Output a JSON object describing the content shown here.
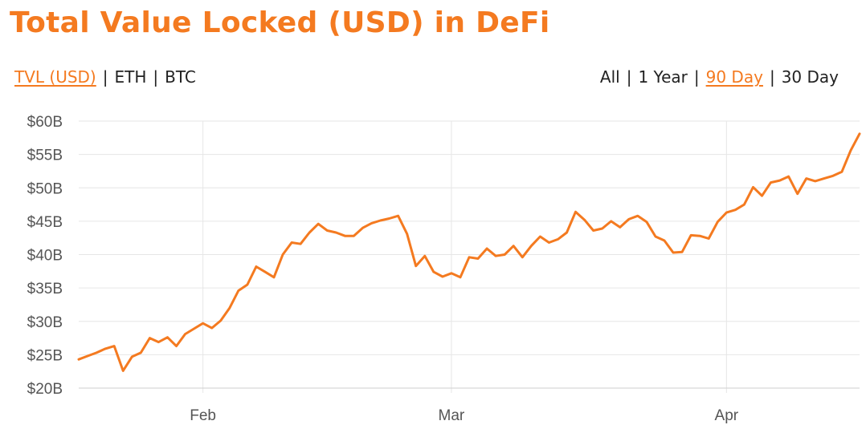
{
  "header": {
    "title": "Total Value Locked (USD) in DeFi"
  },
  "currency_options": [
    {
      "label": "TVL (USD)",
      "active": true
    },
    {
      "label": "ETH",
      "active": false
    },
    {
      "label": "BTC",
      "active": false
    }
  ],
  "range_options": [
    {
      "label": "All",
      "active": false
    },
    {
      "label": "1 Year",
      "active": false
    },
    {
      "label": "90 Day",
      "active": true
    },
    {
      "label": "30 Day",
      "active": false
    }
  ],
  "separator": "|",
  "colors": {
    "accent": "#f47a20",
    "line": "#f47a20",
    "grid": "#e6e6e6",
    "text": "#222222"
  },
  "chart_data": {
    "type": "line",
    "title": "",
    "xlabel": "",
    "ylabel": "",
    "x_ticks": [
      {
        "label": "Feb",
        "day": 14
      },
      {
        "label": "Mar",
        "day": 42
      },
      {
        "label": "Apr",
        "day": 73
      }
    ],
    "y_ticks": [
      "$20B",
      "$25B",
      "$30B",
      "$35B",
      "$40B",
      "$45B",
      "$50B",
      "$55B",
      "$60B"
    ],
    "y_tick_values": [
      20,
      25,
      30,
      35,
      40,
      45,
      50,
      55,
      60
    ],
    "ylim": [
      20,
      60
    ],
    "x_range_days": [
      0,
      88
    ],
    "grid": true,
    "series": [
      {
        "name": "",
        "unit": "B USD",
        "values": [
          [
            0,
            24.3
          ],
          [
            1,
            24.8
          ],
          [
            2,
            25.3
          ],
          [
            3,
            25.9
          ],
          [
            4,
            26.3
          ],
          [
            5,
            22.6
          ],
          [
            6,
            24.7
          ],
          [
            7,
            25.3
          ],
          [
            8,
            27.5
          ],
          [
            9,
            26.9
          ],
          [
            10,
            27.6
          ],
          [
            11,
            26.3
          ],
          [
            12,
            28.1
          ],
          [
            13,
            28.9
          ],
          [
            14,
            29.7
          ],
          [
            15,
            29.0
          ],
          [
            16,
            30.1
          ],
          [
            17,
            32.0
          ],
          [
            18,
            34.6
          ],
          [
            19,
            35.5
          ],
          [
            20,
            38.2
          ],
          [
            21,
            37.4
          ],
          [
            22,
            36.6
          ],
          [
            23,
            40.0
          ],
          [
            24,
            41.8
          ],
          [
            25,
            41.6
          ],
          [
            26,
            43.3
          ],
          [
            27,
            44.6
          ],
          [
            28,
            43.6
          ],
          [
            29,
            43.3
          ],
          [
            30,
            42.8
          ],
          [
            31,
            42.8
          ],
          [
            32,
            44.0
          ],
          [
            33,
            44.7
          ],
          [
            34,
            45.1
          ],
          [
            35,
            45.4
          ],
          [
            36,
            45.8
          ],
          [
            37,
            43.1
          ],
          [
            38,
            38.3
          ],
          [
            39,
            39.8
          ],
          [
            40,
            37.4
          ],
          [
            41,
            36.7
          ],
          [
            42,
            37.2
          ],
          [
            43,
            36.6
          ],
          [
            44,
            39.6
          ],
          [
            45,
            39.4
          ],
          [
            46,
            40.9
          ],
          [
            47,
            39.8
          ],
          [
            48,
            40.0
          ],
          [
            49,
            41.3
          ],
          [
            50,
            39.6
          ],
          [
            51,
            41.3
          ],
          [
            52,
            42.7
          ],
          [
            53,
            41.8
          ],
          [
            54,
            42.3
          ],
          [
            55,
            43.3
          ],
          [
            56,
            46.4
          ],
          [
            57,
            45.2
          ],
          [
            58,
            43.6
          ],
          [
            59,
            43.9
          ],
          [
            60,
            45.0
          ],
          [
            61,
            44.1
          ],
          [
            62,
            45.3
          ],
          [
            63,
            45.8
          ],
          [
            64,
            44.9
          ],
          [
            65,
            42.7
          ],
          [
            66,
            42.1
          ],
          [
            67,
            40.3
          ],
          [
            68,
            40.4
          ],
          [
            69,
            42.9
          ],
          [
            70,
            42.8
          ],
          [
            71,
            42.4
          ],
          [
            72,
            44.9
          ],
          [
            73,
            46.3
          ],
          [
            74,
            46.7
          ],
          [
            75,
            47.5
          ],
          [
            76,
            50.1
          ],
          [
            77,
            48.8
          ],
          [
            78,
            50.8
          ],
          [
            79,
            51.1
          ],
          [
            80,
            51.7
          ],
          [
            81,
            49.1
          ],
          [
            82,
            51.4
          ],
          [
            83,
            51.0
          ],
          [
            84,
            51.4
          ],
          [
            85,
            51.8
          ],
          [
            86,
            52.4
          ],
          [
            87,
            55.6
          ],
          [
            88,
            58.1
          ]
        ]
      }
    ]
  }
}
